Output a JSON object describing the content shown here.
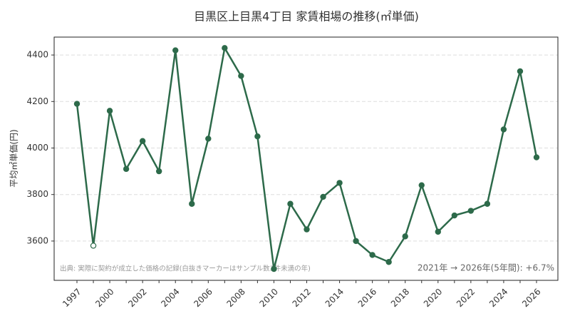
{
  "chart_data": {
    "type": "line",
    "title": "目黒区上目黒4丁目 家賃相場の推移(㎡単価)",
    "y_label": "平均㎡単価(円)",
    "categories": [
      "1997",
      null,
      "2000",
      null,
      "2002",
      null,
      "2004",
      null,
      "2006",
      null,
      "2008",
      null,
      "2010",
      null,
      "2012",
      null,
      "2014",
      null,
      "2016",
      null,
      "2018",
      null,
      "2020",
      null,
      "2022",
      null,
      "2024",
      null,
      "2026"
    ],
    "values": [
      4190,
      3580,
      4160,
      3910,
      4030,
      3900,
      4420,
      3760,
      4040,
      4430,
      4310,
      4050,
      3480,
      3760,
      3650,
      3790,
      3850,
      3600,
      3540,
      3510,
      3620,
      3840,
      3640,
      3710,
      3730,
      3760,
      4080,
      4330,
      3960
    ],
    "marker_open": [
      false,
      true,
      false,
      false,
      false,
      false,
      false,
      false,
      false,
      false,
      false,
      false,
      false,
      false,
      false,
      false,
      false,
      false,
      false,
      false,
      false,
      false,
      false,
      false,
      false,
      false,
      false,
      false,
      false
    ],
    "color": "#2d6a4a",
    "ylim": [
      3431,
      4477
    ],
    "yticks": [
      3600,
      3800,
      4000,
      4200,
      4400
    ],
    "grid": true,
    "source_note": "出典: 実際に契約が成立した価格の記録(白抜きマーカーはサンプル数3件未満の年)",
    "change_note": "2021年 → 2026年(5年間): +6.7%"
  }
}
